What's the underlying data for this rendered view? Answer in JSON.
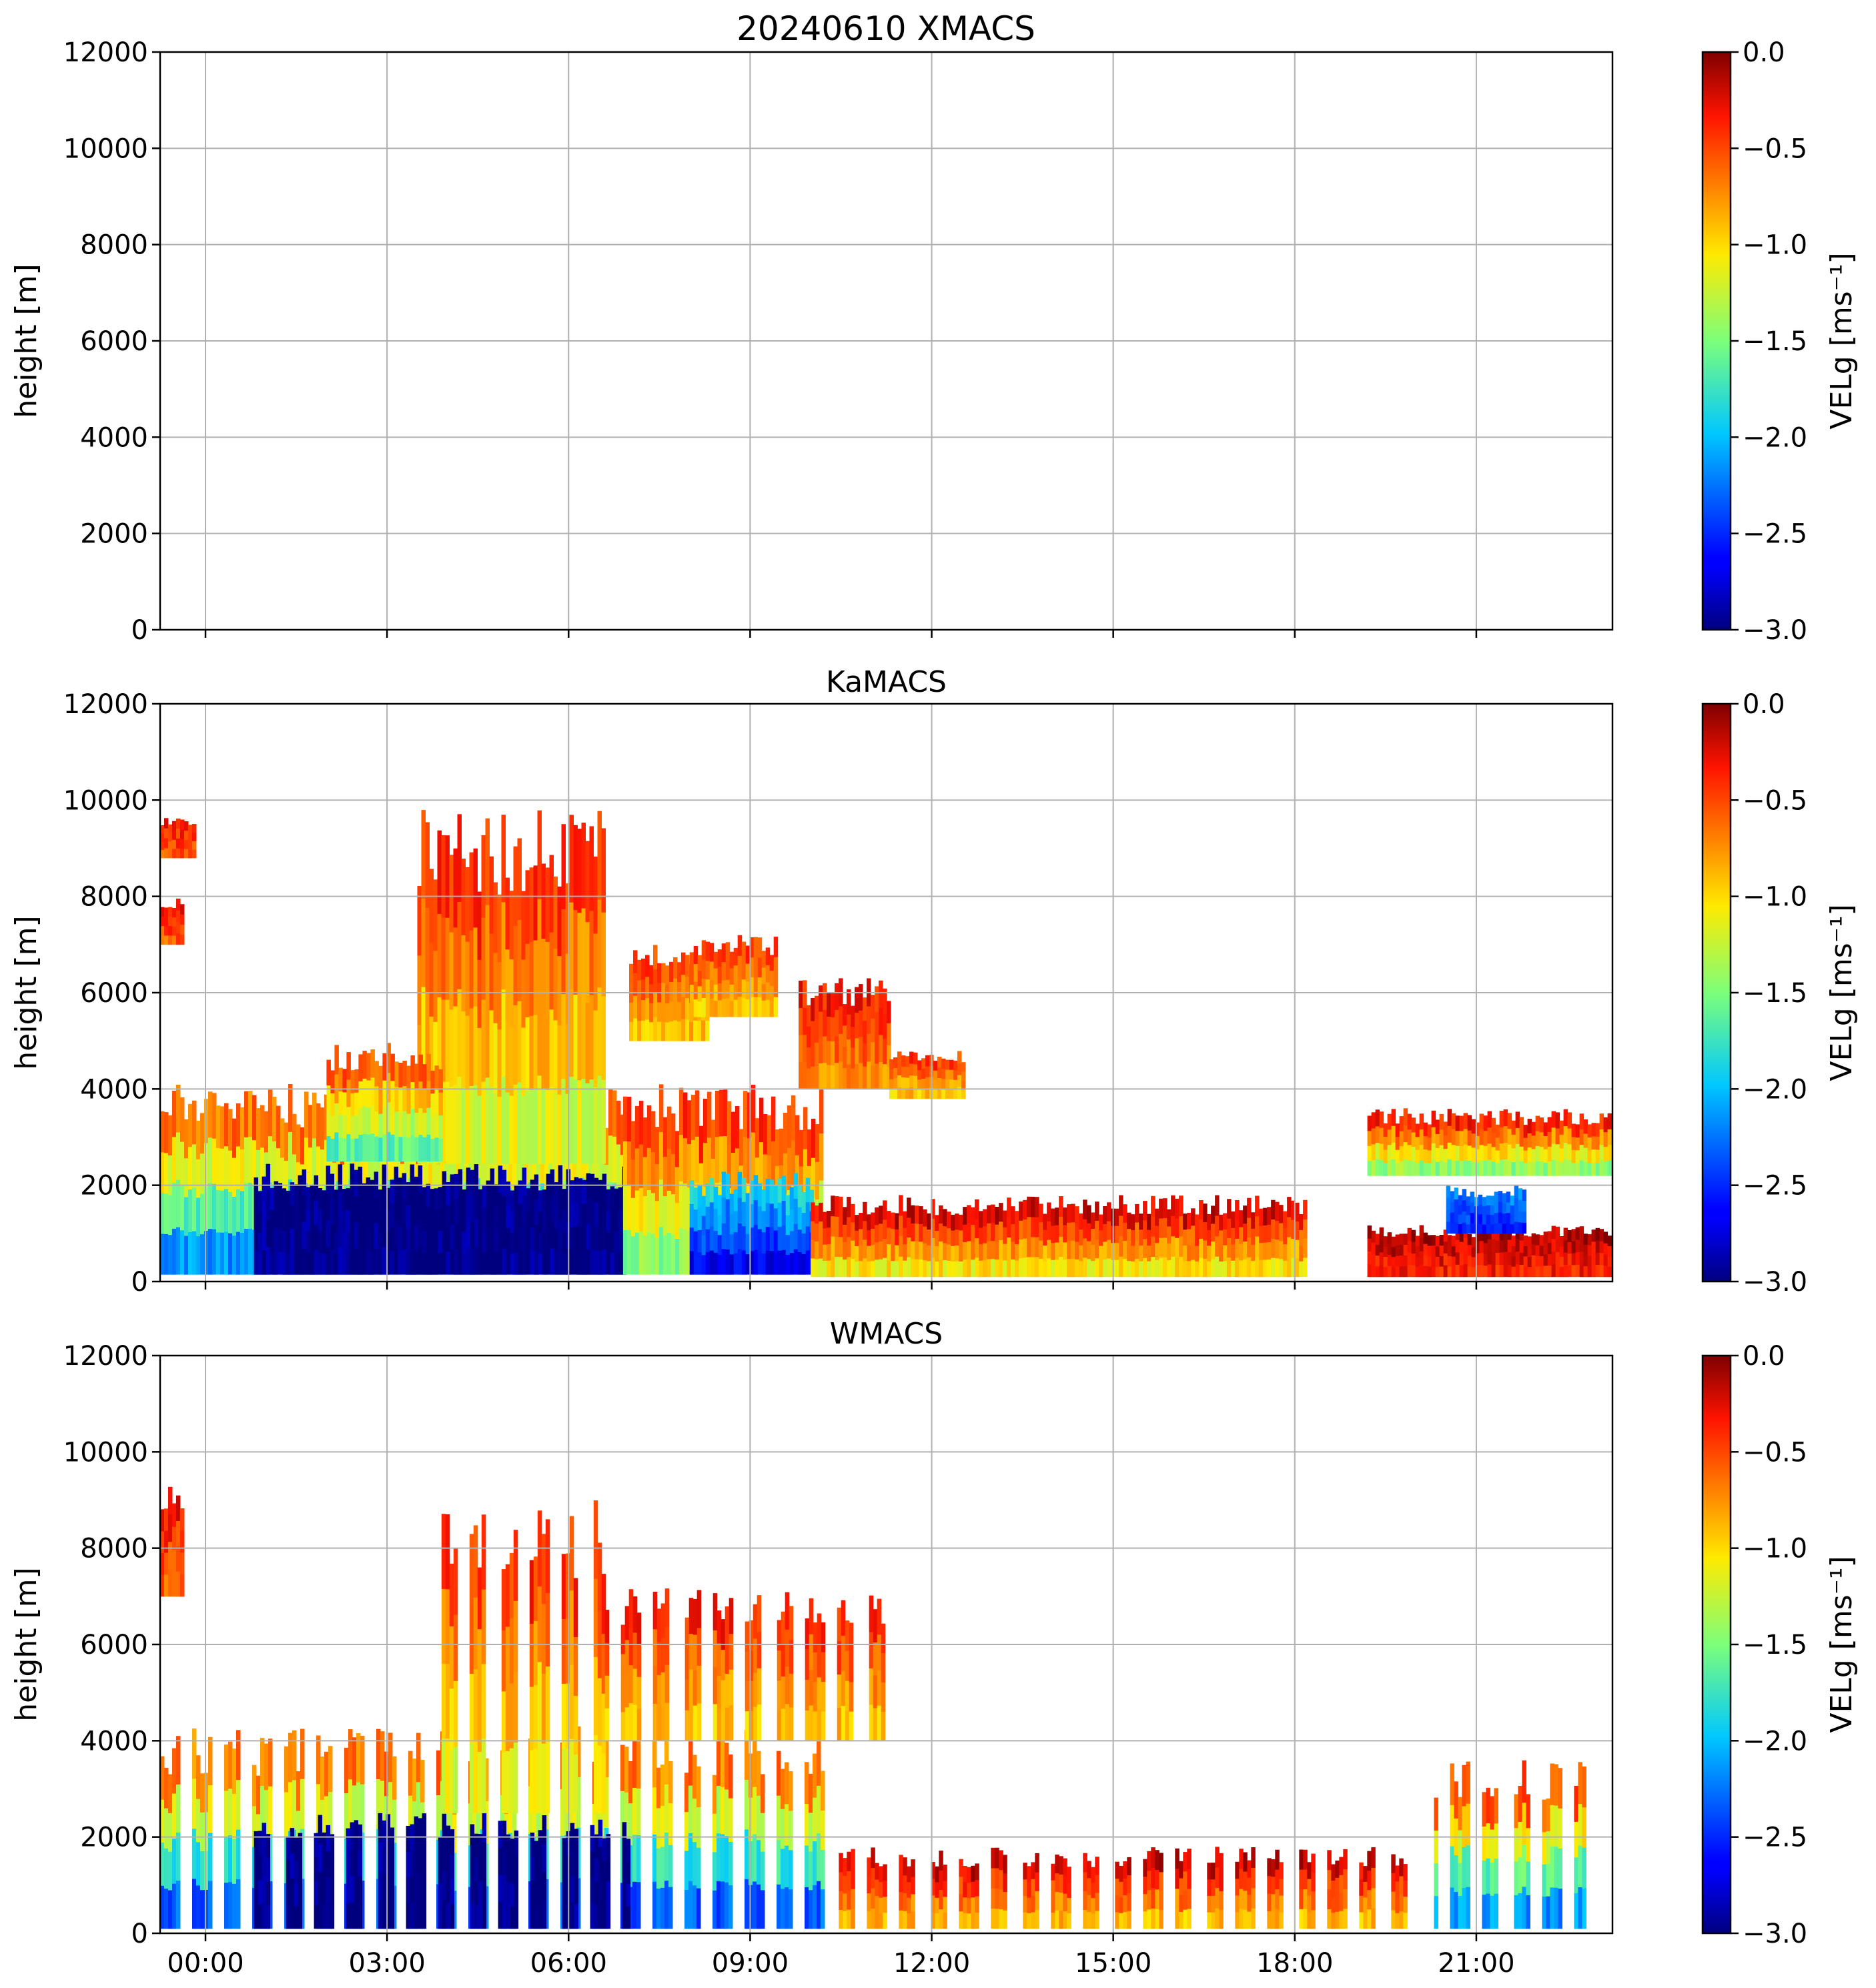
{
  "figure": {
    "title": "20240610 XMACS"
  },
  "chart_data": [
    {
      "type": "heatmap",
      "title": "20240610 XMACS",
      "panel_label": "XMACS",
      "xlabel": "",
      "ylabel": "height [m]",
      "xlim_hours": [
        -0.75,
        23.25
      ],
      "ylim": [
        0,
        12000
      ],
      "yticks": [
        0,
        2000,
        4000,
        6000,
        8000,
        10000,
        12000
      ],
      "grid": true,
      "colorbar": {
        "label": "VELg [ms⁻¹]",
        "min": -3.0,
        "max": 0.0,
        "ticks": [
          "0.0",
          "−0.5",
          "−1.0",
          "−1.5",
          "−2.0",
          "−2.5",
          "−3.0"
        ],
        "colormap": "jet"
      },
      "echo_regions": []
    },
    {
      "type": "heatmap",
      "title": "KaMACS",
      "xlabel": "",
      "ylabel": "height [m]",
      "xlim_hours": [
        -0.75,
        23.25
      ],
      "ylim": [
        0,
        12000
      ],
      "yticks": [
        0,
        2000,
        4000,
        6000,
        8000,
        10000,
        12000
      ],
      "grid": true,
      "colorbar": {
        "label": "VELg [ms⁻¹]",
        "min": -3.0,
        "max": 0.0,
        "ticks": [
          "0.0",
          "−0.5",
          "−1.0",
          "−1.5",
          "−2.0",
          "−2.5",
          "−3.0"
        ],
        "colormap": "jet"
      },
      "echo_regions": [
        {
          "t0": -0.75,
          "t1": 6.9,
          "h0": 150,
          "h1": 4200,
          "value_bottom": -2.4,
          "value_top": -0.4
        },
        {
          "t0": 0.8,
          "t1": 6.9,
          "h0": 150,
          "h1": 2450,
          "value_bottom": -3.0,
          "value_top": -3.0
        },
        {
          "t0": 3.5,
          "t1": 6.6,
          "h0": 2450,
          "h1": 9800,
          "value_bottom": -1.3,
          "value_top": -0.3
        },
        {
          "t0": 2.0,
          "t1": 3.9,
          "h0": 2500,
          "h1": 5000,
          "value_bottom": -1.8,
          "value_top": -0.4
        },
        {
          "t0": 6.9,
          "t1": 10.2,
          "h0": 150,
          "h1": 4100,
          "value_bottom": -1.6,
          "value_top": -0.3
        },
        {
          "t0": 8.0,
          "t1": 10.0,
          "h0": 150,
          "h1": 2300,
          "value_bottom": -2.8,
          "value_top": -1.8
        },
        {
          "t0": 7.0,
          "t1": 8.3,
          "h0": 5000,
          "h1": 7000,
          "value_bottom": -1.0,
          "value_top": -0.4
        },
        {
          "t0": 8.0,
          "t1": 9.4,
          "h0": 5500,
          "h1": 7200,
          "value_bottom": -1.0,
          "value_top": -0.4
        },
        {
          "t0": 9.8,
          "t1": 11.3,
          "h0": 4000,
          "h1": 6300,
          "value_bottom": -0.8,
          "value_top": -0.3
        },
        {
          "t0": -0.75,
          "t1": -0.2,
          "h0": 8800,
          "h1": 9700,
          "value_bottom": -0.6,
          "value_top": -0.3
        },
        {
          "t0": -0.75,
          "t1": -0.4,
          "h0": 7000,
          "h1": 8000,
          "value_bottom": -0.6,
          "value_top": -0.3
        },
        {
          "t0": 10.0,
          "t1": 18.2,
          "h0": 100,
          "h1": 1800,
          "value_bottom": -1.2,
          "value_top": -0.1
        },
        {
          "t0": 11.3,
          "t1": 12.5,
          "h0": 3800,
          "h1": 4800,
          "value_bottom": -1.0,
          "value_top": -0.4
        },
        {
          "t0": 19.2,
          "t1": 23.25,
          "h0": 100,
          "h1": 1200,
          "value_bottom": -0.4,
          "value_top": -0.1
        },
        {
          "t0": 19.2,
          "t1": 23.25,
          "h0": 2200,
          "h1": 3600,
          "value_bottom": -1.6,
          "value_top": -0.2
        },
        {
          "t0": 20.5,
          "t1": 21.8,
          "h0": 1000,
          "h1": 2000,
          "value_bottom": -2.6,
          "value_top": -2.2
        }
      ]
    },
    {
      "type": "heatmap",
      "title": "WMACS",
      "xlabel": "",
      "ylabel": "height [m]",
      "xlim_hours": [
        -0.75,
        23.25
      ],
      "ylim": [
        0,
        12000
      ],
      "yticks": [
        0,
        2000,
        4000,
        6000,
        8000,
        10000,
        12000
      ],
      "xticks": [
        "00:00",
        "03:00",
        "06:00",
        "09:00",
        "12:00",
        "15:00",
        "18:00",
        "21:00"
      ],
      "grid": true,
      "colorbar": {
        "label": "VELg [ms⁻¹]",
        "min": -3.0,
        "max": 0.0,
        "ticks": [
          "0.0",
          "−0.5",
          "−1.0",
          "−1.5",
          "−2.0",
          "−2.5",
          "−3.0"
        ],
        "colormap": "jet"
      },
      "echo_regions": [
        {
          "t0": -0.75,
          "t1": 10.2,
          "h0": 100,
          "h1": 4300,
          "value_bottom": -2.6,
          "value_top": -0.4,
          "striped": true
        },
        {
          "t0": 0.8,
          "t1": 7.0,
          "h0": 100,
          "h1": 2500,
          "value_bottom": -3.0,
          "value_top": -3.0,
          "striped": true
        },
        {
          "t0": 3.9,
          "t1": 6.6,
          "h0": 2500,
          "h1": 9000,
          "value_bottom": -1.3,
          "value_top": -0.3,
          "striped": true
        },
        {
          "t0": 6.6,
          "t1": 11.2,
          "h0": 4000,
          "h1": 7200,
          "value_bottom": -1.0,
          "value_top": -0.3,
          "striped": true
        },
        {
          "t0": -0.75,
          "t1": -0.4,
          "h0": 7000,
          "h1": 9400,
          "value_bottom": -0.6,
          "value_top": -0.3
        },
        {
          "t0": 10.2,
          "t1": 20.0,
          "h0": 100,
          "h1": 1800,
          "value_bottom": -1.0,
          "value_top": -0.1,
          "striped": true
        },
        {
          "t0": 20.3,
          "t1": 22.8,
          "h0": 100,
          "h1": 3600,
          "value_bottom": -2.4,
          "value_top": -0.3,
          "striped": true
        }
      ]
    }
  ]
}
